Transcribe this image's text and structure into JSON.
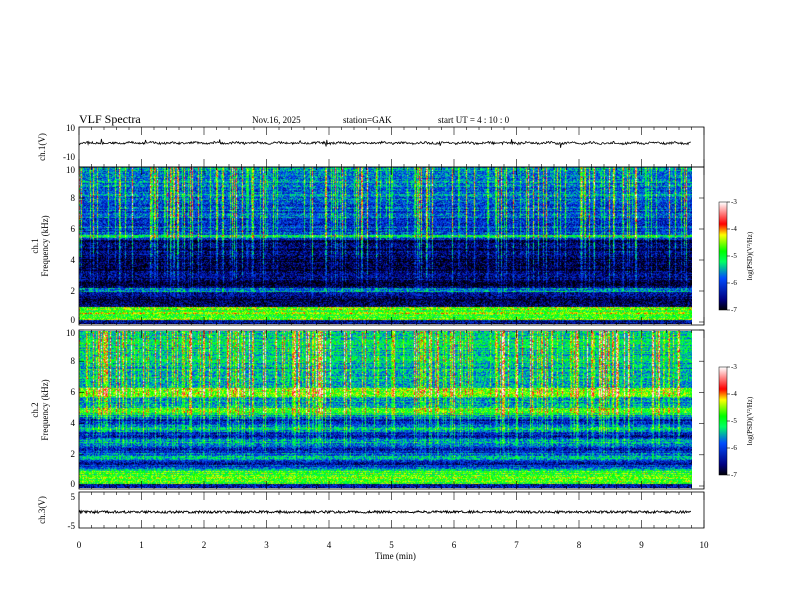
{
  "header": {
    "title": "VLF  Spectra",
    "date": "Nov.16, 2025",
    "station": "station=GAK",
    "start": "start  UT  =   4  : 10 : 0"
  },
  "colors": {
    "axis": "#000000",
    "background": "#ffffff"
  },
  "chart_data": [
    {
      "type": "line",
      "name": "ch1-waveform",
      "ylabel": "ch.1(V)",
      "ylim": [
        -10,
        10
      ],
      "yticks": [
        "10",
        "-10"
      ],
      "xlim": [
        0,
        10
      ],
      "data_end_min": 9.8,
      "mean_value": 0.2
    },
    {
      "type": "heatmap",
      "name": "ch1-spectrogram",
      "ylabel": "ch.1\nFrequency  (kHz)",
      "ylabel_lines": [
        "ch.1",
        "Frequency  (kHz)"
      ],
      "ylim": [
        0,
        10
      ],
      "yticks": [
        "0",
        "2",
        "4",
        "6",
        "8",
        "10"
      ],
      "xlim": [
        0,
        10
      ],
      "colorbar": {
        "label": "log(PSD)(V²/Hz)",
        "range": [
          -7,
          -3
        ],
        "ticks": [
          "-3",
          "-4",
          "-5",
          "-6",
          "-7"
        ]
      }
    },
    {
      "type": "heatmap",
      "name": "ch2-spectrogram",
      "ylabel_lines": [
        "ch.2",
        "Frequency  (kHz)"
      ],
      "ylim": [
        0,
        10
      ],
      "yticks": [
        "0",
        "2",
        "4",
        "6",
        "8",
        "10"
      ],
      "xlim": [
        0,
        10
      ],
      "colorbar": {
        "label": "log(PSD)(V²/Hz)",
        "range": [
          -7,
          -3
        ],
        "ticks": [
          "-3",
          "-4",
          "-5",
          "-6",
          "-7"
        ]
      }
    },
    {
      "type": "line",
      "name": "ch3-waveform",
      "ylabel": "ch.3(V)",
      "ylim": [
        -5,
        5
      ],
      "yticks": [
        "5",
        "-5"
      ],
      "xlim": [
        0,
        10
      ],
      "data_end_min": 9.8,
      "mean_value": -1
    }
  ],
  "xaxis": {
    "label": "Time  (min)",
    "ticks": [
      "0",
      "1",
      "2",
      "3",
      "4",
      "5",
      "6",
      "7",
      "8",
      "9",
      "10"
    ]
  }
}
